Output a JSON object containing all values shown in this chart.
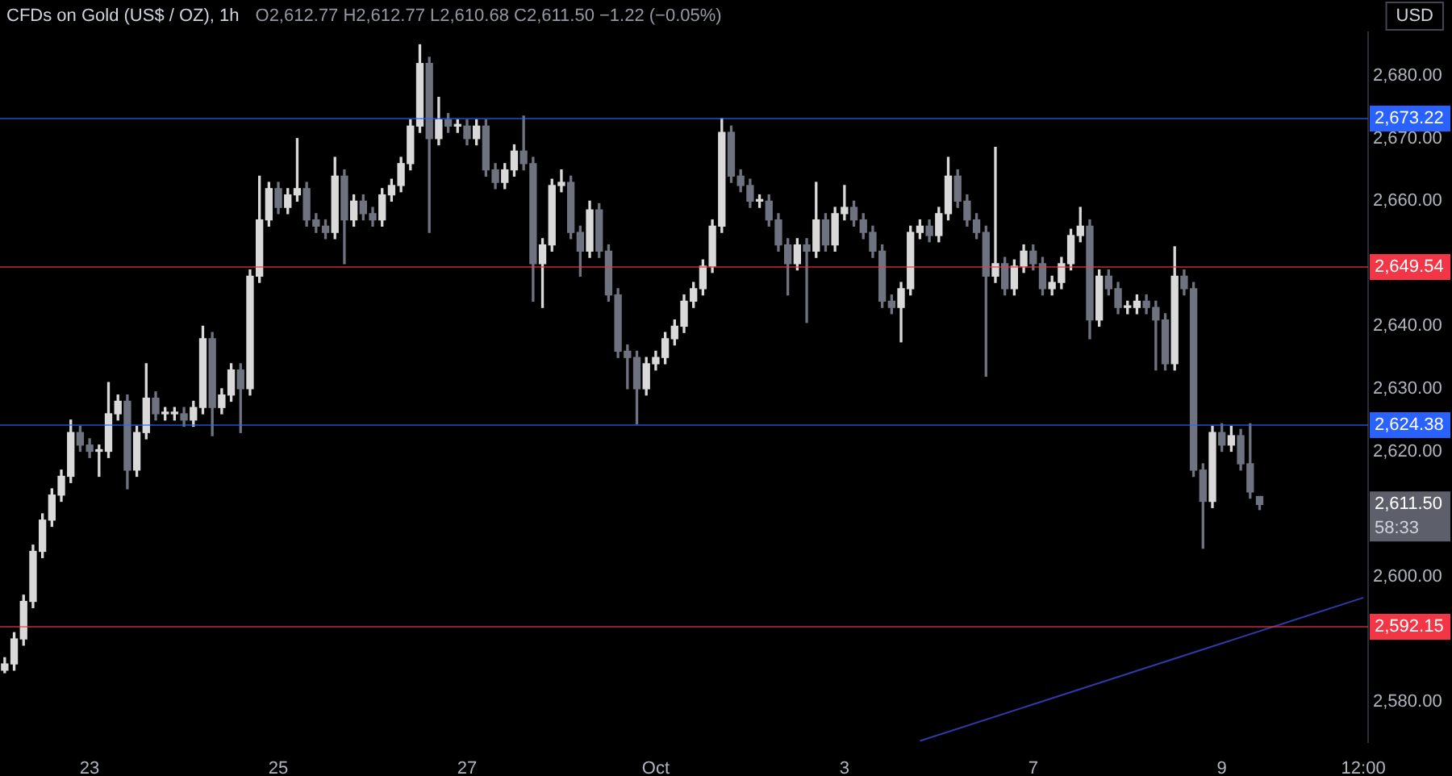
{
  "chart_data": {
    "type": "candlestick",
    "title": "CFDs on Gold (US$ / OZ), 1h",
    "ylabel": "USD",
    "annotations": [
      "O2,612.77 H2,612.77 L2,610.68 C2,611.50 −1.22 (−0.05%)",
      "2,611.50",
      "58:33"
    ],
    "categories": [
      null,
      null,
      null,
      null,
      null,
      null,
      null,
      null,
      null,
      "23",
      null,
      null,
      null,
      null,
      null,
      null,
      null,
      null,
      null,
      null,
      null,
      null,
      null,
      null,
      null,
      null,
      null,
      null,
      null,
      "25",
      null,
      null,
      null,
      null,
      null,
      null,
      null,
      null,
      null,
      null,
      null,
      null,
      null,
      null,
      null,
      null,
      null,
      null,
      null,
      "27",
      null,
      null,
      null,
      null,
      null,
      null,
      null,
      null,
      null,
      null,
      null,
      null,
      null,
      null,
      null,
      null,
      null,
      null,
      null,
      "Oct",
      null,
      null,
      null,
      null,
      null,
      null,
      null,
      null,
      null,
      null,
      null,
      null,
      null,
      null,
      null,
      null,
      null,
      null,
      null,
      "3",
      null,
      null,
      null,
      null,
      null,
      null,
      null,
      null,
      null,
      null,
      null,
      null,
      null,
      null,
      null,
      null,
      null,
      null,
      null,
      "7",
      null,
      null,
      null,
      null,
      null,
      null,
      null,
      null,
      null,
      null,
      null,
      null,
      null,
      null,
      null,
      null,
      null,
      null,
      null,
      "9",
      null,
      null,
      null,
      null,
      null,
      null,
      null,
      null,
      null,
      null,
      null,
      null,
      null,
      null,
      "12:00"
    ],
    "colors": [
      "#d9d9d9",
      "#d9d9d9",
      "#d9d9d9",
      "#d9d9d9",
      "#d9d9d9",
      "#d9d9d9",
      "#d9d9d9",
      "#d9d9d9",
      "#6f7380",
      "#6f7380",
      "#d9d9d9",
      "#d9d9d9",
      "#d9d9d9",
      "#6f7380",
      "#d9d9d9",
      "#d9d9d9",
      "#6f7380",
      "#d9d9d9",
      "#d9d9d9",
      "#6f7380",
      "#d9d9d9",
      "#d9d9d9",
      "#6f7380",
      "#d9d9d9",
      "#d9d9d9",
      "#6f7380",
      "#d9d9d9",
      "#d9d9d9",
      "#d9d9d9",
      "#6f7380",
      "#d9d9d9",
      "#d9d9d9",
      "#6f7380",
      "#6f7380",
      "#6f7380",
      "#d9d9d9",
      "#6f7380",
      "#d9d9d9",
      "#6f7380",
      "#6f7380",
      "#d9d9d9",
      "#d9d9d9",
      "#d9d9d9",
      "#d9d9d9",
      "#d9d9d9",
      "#6f7380",
      "#d9d9d9",
      "#6f7380",
      "#d9d9d9",
      "#6f7380",
      "#d9d9d9",
      "#6f7380",
      "#6f7380",
      "#d9d9d9",
      "#d9d9d9",
      "#6f7380",
      "#6f7380",
      "#d9d9d9",
      "#d9d9d9",
      "#d9d9d9",
      "#6f7380",
      "#6f7380",
      "#d9d9d9",
      "#6f7380",
      "#6f7380",
      "#6f7380",
      "#6f7380",
      "#6f7380",
      "#d9d9d9",
      "#d9d9d9",
      "#d9d9d9",
      "#d9d9d9",
      "#d9d9d9",
      "#d9d9d9",
      "#d9d9d9",
      "#d9d9d9",
      "#d9d9d9",
      "#6f7380",
      "#6f7380",
      "#6f7380",
      "#d9d9d9",
      "#6f7380",
      "#6f7380",
      "#6f7380",
      "#d9d9d9",
      "#6f7380",
      "#d9d9d9",
      "#6f7380",
      "#d9d9d9",
      "#d9d9d9",
      "#6f7380",
      "#6f7380",
      "#6f7380",
      "#6f7380",
      "#6f7380",
      "#d9d9d9",
      "#d9d9d9",
      "#d9d9d9",
      "#6f7380",
      "#d9d9d9",
      "#d9d9d9",
      "#6f7380",
      "#6f7380",
      "#6f7380",
      "#6f7380",
      "#d9d9d9",
      "#6f7380",
      "#d9d9d9",
      "#d9d9d9",
      "#6f7380",
      "#6f7380",
      "#d9d9d9",
      "#d9d9d9",
      "#d9d9d9",
      "#d9d9d9",
      "#6f7380",
      "#d9d9d9",
      "#6f7380",
      "#6f7380",
      "#d9d9d9",
      "#d9d9d9",
      "#6f7380",
      "#6f7380",
      "#6f7380",
      "#d9d9d9",
      "#6f7380",
      "#6f7380",
      "#6f7380",
      "#d9d9d9",
      "#6f7380",
      "#d9d9d9",
      "#6f7380",
      "#6f7380",
      "#6f7380",
      null,
      null,
      null,
      null,
      null,
      null,
      null,
      null,
      null,
      null,
      null
    ],
    "ohlc": [
      [
        2585,
        2587,
        2584.6,
        2586
      ],
      [
        2586,
        2591,
        2585,
        2590
      ],
      [
        2590,
        2597,
        2589,
        2596
      ],
      [
        2596,
        2605,
        2595,
        2604
      ],
      [
        2604,
        2610,
        2603,
        2609
      ],
      [
        2609,
        2614,
        2608,
        2613
      ],
      [
        2613,
        2617,
        2612,
        2616
      ],
      [
        2616,
        2625,
        2615,
        2623
      ],
      [
        2623,
        2624,
        2620,
        2621
      ],
      [
        2621,
        2622,
        2619,
        2620
      ],
      [
        2620,
        2621,
        2616,
        2620
      ],
      [
        2620,
        2631,
        2619,
        2626
      ],
      [
        2626,
        2629,
        2625,
        2628
      ],
      [
        2628,
        2629,
        2614,
        2617
      ],
      [
        2617,
        2624,
        2616,
        2623
      ],
      [
        2623,
        2634,
        2622,
        2628.5
      ],
      [
        2628.5,
        2629.5,
        2625,
        2626
      ],
      [
        2626,
        2627,
        2625,
        2626
      ],
      [
        2626,
        2627,
        2625,
        2626
      ],
      [
        2626,
        2627,
        2624,
        2625
      ],
      [
        2625,
        2628,
        2624,
        2627
      ],
      [
        2627,
        2640,
        2626,
        2638
      ],
      [
        2638,
        2639,
        2622.5,
        2627
      ],
      [
        2627,
        2630,
        2626,
        2629
      ],
      [
        2629,
        2634,
        2628,
        2633
      ],
      [
        2633,
        2634,
        2623,
        2630
      ],
      [
        2630,
        2649,
        2629,
        2648
      ],
      [
        2648,
        2664,
        2647,
        2657
      ],
      [
        2657,
        2663,
        2656,
        2662
      ],
      [
        2662,
        2663,
        2658,
        2659
      ],
      [
        2659,
        2662,
        2658,
        2661
      ],
      [
        2661,
        2670,
        2660,
        2662
      ],
      [
        2662,
        2663,
        2656,
        2657
      ],
      [
        2657,
        2658,
        2655,
        2656
      ],
      [
        2656,
        2657,
        2654,
        2655
      ],
      [
        2655,
        2667,
        2654,
        2664
      ],
      [
        2664,
        2665,
        2650,
        2657
      ],
      [
        2657,
        2661,
        2656,
        2660
      ],
      [
        2660,
        2661,
        2657,
        2658
      ],
      [
        2658,
        2659,
        2656,
        2657
      ],
      [
        2657,
        2662,
        2656,
        2661
      ],
      [
        2661,
        2663.5,
        2660,
        2662.5
      ],
      [
        2662.5,
        2667,
        2661.5,
        2666
      ],
      [
        2666,
        2673,
        2665,
        2672
      ],
      [
        2672,
        2685,
        2671,
        2682
      ],
      [
        2682,
        2683,
        2655,
        2670
      ],
      [
        2670,
        2676.6,
        2669,
        2673
      ],
      [
        2673,
        2674,
        2671,
        2672
      ],
      [
        2672,
        2673,
        2671,
        2672
      ],
      [
        2672,
        2673,
        2669,
        2670
      ],
      [
        2670,
        2673,
        2669,
        2672
      ],
      [
        2672,
        2673,
        2664,
        2665
      ],
      [
        2665,
        2666,
        2662,
        2663
      ],
      [
        2663,
        2666,
        2662,
        2665
      ],
      [
        2665,
        2669,
        2664,
        2668
      ],
      [
        2668,
        2673.6,
        2665,
        2666
      ],
      [
        2666,
        2667,
        2644,
        2650
      ],
      [
        2650,
        2654,
        2643,
        2653
      ],
      [
        2653,
        2663.5,
        2652,
        2662.5
      ],
      [
        2662.5,
        2665,
        2661.5,
        2663
      ],
      [
        2663,
        2664,
        2654,
        2655
      ],
      [
        2655,
        2656,
        2648,
        2652
      ],
      [
        2652,
        2660,
        2651,
        2658.6
      ],
      [
        2658.6,
        2659.6,
        2651,
        2652
      ],
      [
        2652,
        2653,
        2644,
        2645
      ],
      [
        2645,
        2646,
        2635,
        2636
      ],
      [
        2636,
        2637,
        2630,
        2635
      ],
      [
        2635,
        2636,
        2624.4,
        2630
      ],
      [
        2630,
        2635,
        2629,
        2634
      ],
      [
        2634,
        2636,
        2633,
        2635
      ],
      [
        2635,
        2639,
        2634,
        2638
      ],
      [
        2638,
        2641,
        2637,
        2640
      ],
      [
        2640,
        2645,
        2639,
        2644
      ],
      [
        2644,
        2647,
        2643,
        2646
      ],
      [
        2646,
        2650.6,
        2645,
        2649.6
      ],
      [
        2649.6,
        2657,
        2648.6,
        2656
      ],
      [
        2656,
        2673.2,
        2655,
        2671
      ],
      [
        2671,
        2672,
        2663,
        2664
      ],
      [
        2664,
        2665,
        2661.5,
        2662.5
      ],
      [
        2662.5,
        2663.5,
        2659,
        2660
      ],
      [
        2660,
        2661,
        2659,
        2660
      ],
      [
        2660,
        2661,
        2656,
        2657
      ],
      [
        2657,
        2658,
        2652,
        2653
      ],
      [
        2653,
        2654,
        2645,
        2650
      ],
      [
        2650,
        2654,
        2649,
        2653
      ],
      [
        2653,
        2654,
        2640.6,
        2652
      ],
      [
        2652,
        2663,
        2651,
        2657
      ],
      [
        2657,
        2658,
        2652,
        2653
      ],
      [
        2653,
        2659,
        2652,
        2658
      ],
      [
        2658,
        2662.5,
        2657,
        2659
      ],
      [
        2659,
        2660,
        2656,
        2657
      ],
      [
        2657,
        2658,
        2654,
        2655
      ],
      [
        2655,
        2656,
        2651,
        2652
      ],
      [
        2652,
        2653,
        2643,
        2644
      ],
      [
        2644,
        2645,
        2642,
        2643
      ],
      [
        2643,
        2647,
        2637.5,
        2646
      ],
      [
        2646,
        2656,
        2645,
        2655
      ],
      [
        2655,
        2657,
        2654,
        2656
      ],
      [
        2656,
        2657,
        2653.5,
        2654.5
      ],
      [
        2654.5,
        2659,
        2653.5,
        2658
      ],
      [
        2658,
        2667,
        2657,
        2664
      ],
      [
        2664,
        2665,
        2659,
        2660
      ],
      [
        2660,
        2661,
        2656,
        2657
      ],
      [
        2657,
        2658,
        2654,
        2655
      ],
      [
        2655,
        2656,
        2632,
        2648
      ],
      [
        2648,
        2668.6,
        2647,
        2650
      ],
      [
        2650,
        2651,
        2645,
        2646
      ],
      [
        2646,
        2650.6,
        2645,
        2649.6
      ],
      [
        2649.6,
        2653,
        2648.6,
        2652
      ],
      [
        2652,
        2653,
        2649,
        2650
      ],
      [
        2650,
        2651,
        2645,
        2646
      ],
      [
        2646,
        2648,
        2645,
        2647
      ],
      [
        2647,
        2651,
        2646,
        2650
      ],
      [
        2650,
        2655.5,
        2649,
        2654.5
      ],
      [
        2654.5,
        2659,
        2653.5,
        2656
      ],
      [
        2656,
        2657,
        2638,
        2641
      ],
      [
        2641,
        2649,
        2640,
        2648
      ],
      [
        2648,
        2649,
        2645,
        2646
      ],
      [
        2646,
        2647,
        2642,
        2643
      ],
      [
        2643,
        2644,
        2642,
        2643
      ],
      [
        2643,
        2645,
        2642,
        2644
      ],
      [
        2644,
        2645,
        2642,
        2643
      ],
      [
        2643,
        2644,
        2633,
        2641
      ],
      [
        2641,
        2642,
        2633,
        2634
      ],
      [
        2634,
        2652.7,
        2633,
        2648
      ],
      [
        2648,
        2649,
        2645,
        2646
      ],
      [
        2646,
        2647,
        2616,
        2617
      ],
      [
        2617,
        2618,
        2604.5,
        2612
      ],
      [
        2612,
        2624,
        2611,
        2623
      ],
      [
        2623,
        2624.4,
        2620,
        2621
      ],
      [
        2621,
        2624,
        2620,
        2622.5
      ],
      [
        2622.5,
        2623.5,
        2617,
        2618
      ],
      [
        2618,
        2624.4,
        2612.5,
        2613.5
      ],
      [
        2612.77,
        2612.77,
        2610.68,
        2611.5
      ],
      null,
      null,
      null,
      null,
      null,
      null,
      null,
      null,
      null,
      null,
      null
    ],
    "series": [
      {
        "type": "line",
        "color": "#2f3aa8",
        "values": [
          null,
          null,
          null,
          null,
          null,
          null,
          null,
          null,
          null,
          null,
          null,
          null,
          null,
          null,
          null,
          null,
          null,
          null,
          null,
          null,
          null,
          null,
          null,
          null,
          null,
          null,
          null,
          null,
          null,
          null,
          null,
          null,
          null,
          null,
          null,
          null,
          null,
          null,
          null,
          null,
          null,
          null,
          null,
          null,
          null,
          null,
          null,
          null,
          null,
          null,
          null,
          null,
          null,
          null,
          null,
          null,
          null,
          null,
          null,
          null,
          null,
          null,
          null,
          null,
          null,
          null,
          null,
          null,
          null,
          null,
          null,
          null,
          null,
          null,
          null,
          null,
          null,
          null,
          null,
          null,
          null,
          null,
          null,
          null,
          null,
          null,
          null,
          null,
          null,
          null,
          null,
          null,
          null,
          null,
          null,
          null,
          null,
          2573.7,
          null,
          null,
          null,
          null,
          null,
          null,
          null,
          null,
          null,
          null,
          null,
          null,
          null,
          null,
          null,
          null,
          null,
          null,
          null,
          null,
          null,
          null,
          null,
          null,
          null,
          null,
          null,
          null,
          null,
          null,
          null,
          null,
          null,
          null,
          null,
          null,
          null,
          null,
          null,
          null,
          null,
          null,
          null,
          null,
          null,
          null,
          2596.6
        ]
      }
    ],
    "ref_lines": [
      {
        "axis": "y",
        "value": 2673.22,
        "label": "2,673.22",
        "color": "#2962ff"
      },
      {
        "axis": "y",
        "value": 2649.54,
        "label": "2,649.54",
        "color": "#f23645"
      },
      {
        "axis": "y",
        "value": 2624.38,
        "label": "2,624.38",
        "color": "#2962ff"
      },
      {
        "axis": "y",
        "value": 2592.15,
        "label": "2,592.15",
        "color": "#f23645"
      }
    ],
    "ylim": [
      2573.5,
      2687
    ],
    "yticks": [
      {
        "value": 2580,
        "label": "2,580.00"
      },
      {
        "value": 2600,
        "label": "2,600.00"
      },
      {
        "value": 2620,
        "label": "2,620.00"
      },
      {
        "value": 2630,
        "label": "2,630.00"
      },
      {
        "value": 2640,
        "label": "2,640.00"
      },
      {
        "value": 2660,
        "label": "2,660.00"
      },
      {
        "value": 2670,
        "label": "2,670.00"
      },
      {
        "value": 2680,
        "label": "2,680.00"
      }
    ],
    "legend": false
  }
}
